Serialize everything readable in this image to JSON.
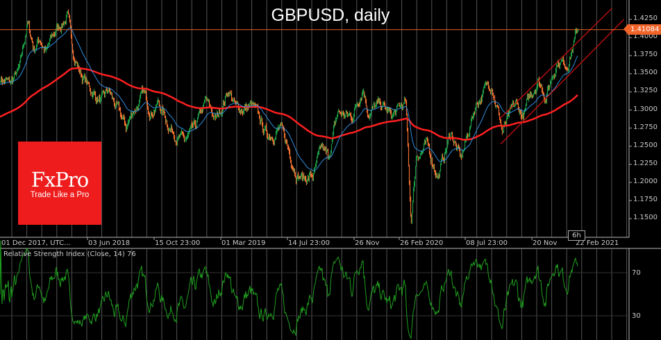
{
  "chart_data": {
    "type": "candlestick",
    "title": "GBPUSD, daily",
    "symbol": "GBPUSD",
    "timeframe_badge": "6h",
    "current_price": "1.41084",
    "y_ticks": [
      "1.4250",
      "1.4000",
      "1.3750",
      "1.3500",
      "1.3250",
      "1.3000",
      "1.2750",
      "1.2500",
      "1.2250",
      "1.2000",
      "1.1750",
      "1.1500"
    ],
    "ylim": [
      1.135,
      1.445
    ],
    "x_ticks": [
      "01 Dec 2017, UTC...",
      "03 Jun 2018",
      "15 Oct 23:00",
      "01 Mar 2019",
      "14 Jul 23:00",
      "26 Nov",
      "26 Feb 2020",
      "08 Jul 23:00",
      "20 Nov",
      "22 Feb 2021"
    ],
    "grid": "vertical only",
    "close_anchors": [
      [
        "2017-12-01",
        1.345
      ],
      [
        "2017-12-20",
        1.335
      ],
      [
        "2018-01-10",
        1.355
      ],
      [
        "2018-01-25",
        1.42
      ],
      [
        "2018-02-08",
        1.385
      ],
      [
        "2018-02-20",
        1.4
      ],
      [
        "2018-03-05",
        1.38
      ],
      [
        "2018-03-25",
        1.41
      ],
      [
        "2018-04-17",
        1.43
      ],
      [
        "2018-05-01",
        1.375
      ],
      [
        "2018-05-15",
        1.35
      ],
      [
        "2018-06-01",
        1.33
      ],
      [
        "2018-06-28",
        1.31
      ],
      [
        "2018-07-10",
        1.325
      ],
      [
        "2018-08-15",
        1.275
      ],
      [
        "2018-08-30",
        1.3
      ],
      [
        "2018-09-20",
        1.32
      ],
      [
        "2018-10-05",
        1.3
      ],
      [
        "2018-10-20",
        1.31
      ],
      [
        "2018-11-10",
        1.28
      ],
      [
        "2018-12-12",
        1.255
      ],
      [
        "2019-01-02",
        1.27
      ],
      [
        "2019-01-25",
        1.31
      ],
      [
        "2019-02-15",
        1.285
      ],
      [
        "2019-03-13",
        1.33
      ],
      [
        "2019-03-29",
        1.3
      ],
      [
        "2019-04-30",
        1.305
      ],
      [
        "2019-05-30",
        1.265
      ],
      [
        "2019-06-25",
        1.275
      ],
      [
        "2019-07-31",
        1.215
      ],
      [
        "2019-08-15",
        1.205
      ],
      [
        "2019-09-03",
        1.21
      ],
      [
        "2019-09-20",
        1.245
      ],
      [
        "2019-10-02",
        1.23
      ],
      [
        "2019-10-22",
        1.295
      ],
      [
        "2019-11-20",
        1.29
      ],
      [
        "2019-12-13",
        1.335
      ],
      [
        "2019-12-23",
        1.3
      ],
      [
        "2020-01-20",
        1.305
      ],
      [
        "2020-02-10",
        1.29
      ],
      [
        "2020-03-09",
        1.31
      ],
      [
        "2020-03-20",
        1.145
      ],
      [
        "2020-03-31",
        1.24
      ],
      [
        "2020-04-20",
        1.25
      ],
      [
        "2020-05-15",
        1.21
      ],
      [
        "2020-06-10",
        1.27
      ],
      [
        "2020-06-30",
        1.23
      ],
      [
        "2020-07-31",
        1.31
      ],
      [
        "2020-09-01",
        1.34
      ],
      [
        "2020-09-23",
        1.27
      ],
      [
        "2020-10-20",
        1.305
      ],
      [
        "2020-11-04",
        1.29
      ],
      [
        "2020-12-04",
        1.345
      ],
      [
        "2020-12-21",
        1.32
      ],
      [
        "2021-01-13",
        1.37
      ],
      [
        "2021-02-02",
        1.365
      ],
      [
        "2021-02-24",
        1.41
      ]
    ],
    "channel_lines": [
      {
        "from": [
          "2020-09-18",
          1.288
        ],
        "to": [
          "2021-05-05",
          1.44
        ]
      },
      {
        "from": [
          "2020-09-20",
          1.253
        ],
        "to": [
          "2021-05-30",
          1.425
        ]
      }
    ],
    "colors": {
      "up": "#1a9a44",
      "down": "#f07030",
      "ma_fast": "#2f8fe0",
      "ma_slow": "#ff2020",
      "price_line": "#f0642a",
      "channel": "#cc1010",
      "rsi": "#1fa01f"
    },
    "rsi": {
      "label": "Relative Strength Index (Close, 14) 76",
      "period": 14,
      "last": 76,
      "levels": [
        "70",
        "30"
      ]
    }
  },
  "logo": {
    "brand": "FxPro",
    "tagline": "Trade Like a Pro"
  }
}
